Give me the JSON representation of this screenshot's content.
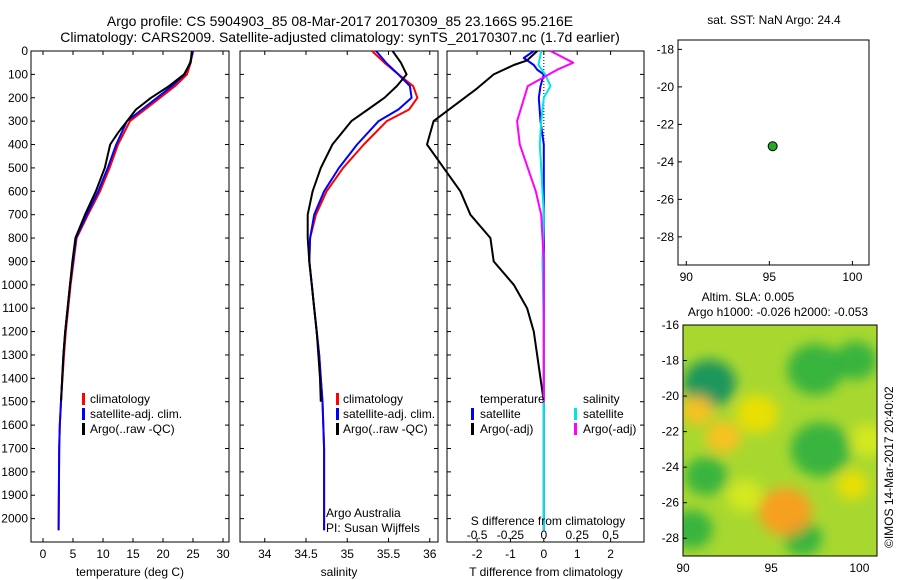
{
  "title_line1": "Argo profile: CS 5904903_85 08-Mar-2017 20170309_85 23.166S 95.216E",
  "title_line2": "Climatology: CARS2009. Satellite-adjusted climatology: synTS_20170307.nc (1.7d earlier)",
  "credit": "Argo Australia",
  "pi": "PI: Susan Wijffels",
  "side_stamp": "©IMOS 14-Mar-2017 20:40:02",
  "colors": {
    "climatology": "#ff0000",
    "satellite": "#0000ff",
    "argo": "#000000",
    "satellite_s": "#00e5e5",
    "argo_s": "#ff00ff"
  },
  "chart_data": [
    {
      "type": "line",
      "name": "temperature",
      "xlabel": "temperature (deg C)",
      "xlim": [
        -2,
        31
      ],
      "xticks": [
        0,
        5,
        10,
        15,
        20,
        25,
        30
      ],
      "ylim": [
        2100,
        0
      ],
      "yticks": [
        0,
        100,
        200,
        300,
        400,
        500,
        600,
        700,
        800,
        900,
        1000,
        1100,
        1200,
        1300,
        1400,
        1500,
        1600,
        1700,
        1800,
        1900,
        2000
      ],
      "legend": [
        "climatology",
        "satellite-adj. clim.",
        "Argo(..raw -QC)"
      ],
      "series": [
        {
          "name": "climatology",
          "x": [
            25,
            24.6,
            24,
            22,
            19.5,
            17,
            14.5,
            12.5,
            11.1,
            9.5,
            7.5,
            5.6,
            5.1,
            4.6,
            4.2,
            3.8,
            3.5,
            3.25,
            3,
            2.8,
            2.7,
            2.6
          ],
          "y": [
            0,
            50,
            100,
            150,
            200,
            250,
            300,
            400,
            500,
            600,
            700,
            800,
            900,
            1000,
            1100,
            1200,
            1300,
            1400,
            1500,
            1600,
            1700,
            2050
          ]
        },
        {
          "name": "satellite-adj. clim.",
          "x": [
            25,
            24.5,
            23.6,
            21.5,
            19,
            16.5,
            14,
            12.2,
            10.8,
            9.2,
            7.3,
            5.5,
            5,
            4.5,
            4.1,
            3.7,
            3.4,
            3.2,
            3,
            2.8,
            2.7,
            2.6
          ],
          "y": [
            0,
            50,
            100,
            150,
            200,
            250,
            300,
            400,
            500,
            600,
            700,
            800,
            900,
            1000,
            1100,
            1200,
            1300,
            1400,
            1500,
            1600,
            1700,
            2050
          ]
        },
        {
          "name": "Argo(..raw -QC)",
          "x": [
            24.8,
            24.6,
            23.5,
            21,
            18,
            15.5,
            12.5,
            11.2,
            10.3,
            8.8,
            7,
            5.4,
            4.9,
            4.5,
            4.1,
            3.7,
            3.4,
            3.2,
            3
          ],
          "y": [
            0,
            50,
            100,
            150,
            200,
            250,
            350,
            400,
            500,
            600,
            700,
            800,
            900,
            1000,
            1100,
            1200,
            1300,
            1400,
            1500
          ]
        }
      ]
    },
    {
      "type": "line",
      "name": "salinity",
      "xlabel": "salinity",
      "xlim": [
        33.7,
        36.1
      ],
      "xticks": [
        34,
        34.5,
        35,
        35.5,
        36
      ],
      "ylim": [
        2100,
        0
      ],
      "legend": [
        "climatology",
        "satellite-adj. clim.",
        "Argo(..raw -QC)"
      ],
      "series": [
        {
          "name": "climatology",
          "x": [
            35.3,
            35.45,
            35.62,
            35.8,
            35.85,
            35.75,
            35.48,
            35.2,
            34.95,
            34.75,
            34.62,
            34.55,
            34.54,
            34.57,
            34.6,
            34.63,
            34.66,
            34.68,
            34.7,
            34.71,
            34.72,
            34.72
          ],
          "y": [
            0,
            50,
            100,
            150,
            200,
            250,
            300,
            400,
            500,
            600,
            700,
            800,
            900,
            1000,
            1100,
            1200,
            1300,
            1400,
            1500,
            1600,
            1700,
            2050
          ]
        },
        {
          "name": "satellite-adj. clim.",
          "x": [
            35.35,
            35.47,
            35.62,
            35.76,
            35.78,
            35.62,
            35.38,
            35.12,
            34.9,
            34.72,
            34.6,
            34.55,
            34.54,
            34.57,
            34.6,
            34.63,
            34.66,
            34.68,
            34.7,
            34.71,
            34.72,
            34.72
          ],
          "y": [
            0,
            50,
            100,
            150,
            200,
            250,
            300,
            400,
            500,
            600,
            700,
            800,
            900,
            1000,
            1100,
            1200,
            1300,
            1400,
            1500,
            1600,
            1700,
            2050
          ]
        },
        {
          "name": "Argo(..raw -QC)",
          "x": [
            35.55,
            35.65,
            35.72,
            35.6,
            35.45,
            35.25,
            35.05,
            34.82,
            34.68,
            34.58,
            34.52,
            34.52,
            34.54,
            34.57,
            34.6,
            34.63,
            34.65,
            34.67,
            34.68
          ],
          "y": [
            0,
            50,
            100,
            150,
            200,
            250,
            300,
            400,
            500,
            600,
            700,
            800,
            900,
            1000,
            1100,
            1200,
            1300,
            1400,
            1500
          ]
        }
      ]
    },
    {
      "type": "line",
      "name": "differences",
      "xlabel": "T difference from climatology",
      "xlabel_top": "S difference from climatology",
      "xlim": [
        -2.9,
        3
      ],
      "xticks": [
        -2,
        -1,
        0,
        1,
        2
      ],
      "top_ticks": [
        "-0.5",
        "-0.25",
        "0",
        "0.25",
        "0.5"
      ],
      "ylim": [
        2100,
        0
      ],
      "legend_temperature": [
        "temperature",
        "satellite",
        "Argo(-adj)"
      ],
      "legend_salinity": [
        "salinity",
        "satellite",
        "Argo(-adj)"
      ],
      "series": [
        {
          "name": "T satellite",
          "x": [
            -0.3,
            -0.6,
            -0.3,
            -0.2,
            0,
            -0.1,
            -0.15,
            -0.1,
            0,
            0,
            0,
            0,
            0,
            0,
            0,
            0,
            0,
            0
          ],
          "y": [
            0,
            30,
            60,
            80,
            100,
            150,
            200,
            300,
            400,
            600,
            800,
            1000,
            1200,
            1400,
            1600,
            1800,
            2000,
            2050
          ]
        },
        {
          "name": "T Argo(-adj)",
          "x": [
            -0.2,
            -0.5,
            -0.9,
            -1.5,
            -2,
            -3.3,
            -3.5,
            -3,
            -2.5,
            -2.2,
            -1.6,
            -1.5,
            -0.9,
            -0.5,
            -0.3,
            -0.1,
            0
          ],
          "y": [
            0,
            40,
            60,
            100,
            160,
            300,
            400,
            500,
            600,
            700,
            800,
            900,
            1000,
            1100,
            1200,
            1400,
            1500
          ]
        },
        {
          "name": "S satellite",
          "x": [
            -0.02,
            -0.04,
            0.01,
            0.05,
            0,
            -0.02,
            -0.03,
            -0.02,
            0,
            -0.01,
            0,
            0,
            0,
            0
          ],
          "y": [
            0,
            60,
            100,
            150,
            200,
            300,
            400,
            500,
            700,
            900,
            1200,
            1500,
            1800,
            2050
          ]
        },
        {
          "name": "S Argo(-adj)",
          "x": [
            0.05,
            0.22,
            0.1,
            -0.12,
            -0.2,
            -0.18,
            -0.12,
            -0.06,
            -0.02,
            0,
            0,
            0
          ],
          "y": [
            0,
            50,
            80,
            150,
            300,
            400,
            500,
            600,
            700,
            900,
            1200,
            1500
          ]
        }
      ]
    },
    {
      "type": "scatter",
      "name": "location",
      "title": "sat. SST: NaN Argo: 24.4",
      "xlim": [
        89.5,
        101
      ],
      "ylim": [
        -29.5,
        -17.5
      ],
      "xticks": [
        90,
        95,
        100
      ],
      "yticks": [
        -18,
        -20,
        -22,
        -24,
        -26,
        -28
      ],
      "points": [
        {
          "x": 95.2,
          "y": -23.166
        }
      ]
    },
    {
      "type": "heatmap",
      "name": "sla",
      "title1": "Altim. SLA: 0.005",
      "title2": "Argo h1000: -0.026 h2000: -0.053",
      "xlim": [
        90,
        101
      ],
      "ylim": [
        -29,
        -16
      ],
      "xticks": [
        90,
        95,
        100
      ],
      "yticks": [
        -16,
        -18,
        -20,
        -22,
        -24,
        -26,
        -28
      ],
      "blobs": [
        {
          "x": 91.5,
          "y": -19.3,
          "v": -0.6,
          "r": 1.5
        },
        {
          "x": 91.3,
          "y": -24.5,
          "v": -0.3,
          "r": 1.2
        },
        {
          "x": 97.5,
          "y": -18.5,
          "v": -0.3,
          "r": 1.6
        },
        {
          "x": 97.8,
          "y": -23.0,
          "v": -0.3,
          "r": 1.7
        },
        {
          "x": 99.8,
          "y": -18.0,
          "v": -0.2,
          "r": 1.2
        },
        {
          "x": 96.8,
          "y": -28.0,
          "v": -0.25,
          "r": 1.1
        },
        {
          "x": 90.5,
          "y": -27.5,
          "v": -0.3,
          "r": 1.2
        },
        {
          "x": 95.8,
          "y": -26.5,
          "v": 0.45,
          "r": 1.5
        },
        {
          "x": 92.3,
          "y": -22.3,
          "v": 0.35,
          "r": 1.0
        },
        {
          "x": 90.8,
          "y": -20.8,
          "v": 0.3,
          "r": 0.9
        },
        {
          "x": 94.2,
          "y": -21.0,
          "v": 0.25,
          "r": 1.2
        },
        {
          "x": 99.6,
          "y": -25.0,
          "v": 0.25,
          "r": 0.9
        },
        {
          "x": 100.5,
          "y": -22.5,
          "v": 0.15,
          "r": 1.0
        },
        {
          "x": 93.5,
          "y": -25.6,
          "v": 0.15,
          "r": 1.0
        }
      ]
    }
  ]
}
